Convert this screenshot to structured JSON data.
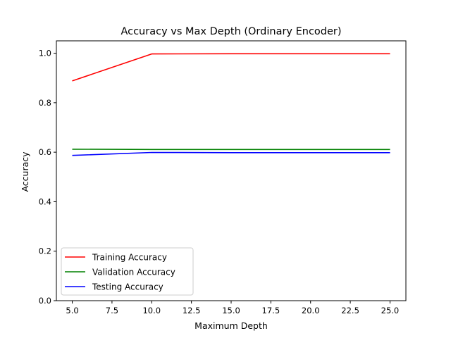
{
  "chart_data": {
    "type": "line",
    "title": "Accuracy vs Max Depth (Ordinary Encoder)",
    "xlabel": "Maximum Depth",
    "ylabel": "Accuracy",
    "xlim": [
      4.0,
      26.0
    ],
    "ylim": [
      0.0,
      1.05
    ],
    "x_ticks": [
      5.0,
      7.5,
      10.0,
      12.5,
      15.0,
      17.5,
      20.0,
      22.5,
      25.0
    ],
    "x_tick_labels": [
      "5.0",
      "7.5",
      "10.0",
      "12.5",
      "15.0",
      "17.5",
      "20.0",
      "22.5",
      "25.0"
    ],
    "y_ticks": [
      0.0,
      0.2,
      0.4,
      0.6,
      0.8,
      1.0
    ],
    "y_tick_labels": [
      "0.0",
      "0.2",
      "0.4",
      "0.6",
      "0.8",
      "1.0"
    ],
    "grid": false,
    "legend_position": "lower-left",
    "x": [
      5,
      10,
      15,
      20,
      25
    ],
    "series": [
      {
        "name": "Training Accuracy",
        "color": "#ff0000",
        "values": [
          0.888,
          0.997,
          0.998,
          0.998,
          0.998
        ]
      },
      {
        "name": "Validation Accuracy",
        "color": "#008000",
        "values": [
          0.612,
          0.611,
          0.611,
          0.611,
          0.611
        ]
      },
      {
        "name": "Testing Accuracy",
        "color": "#0000ff",
        "values": [
          0.587,
          0.599,
          0.598,
          0.598,
          0.598
        ]
      }
    ]
  }
}
